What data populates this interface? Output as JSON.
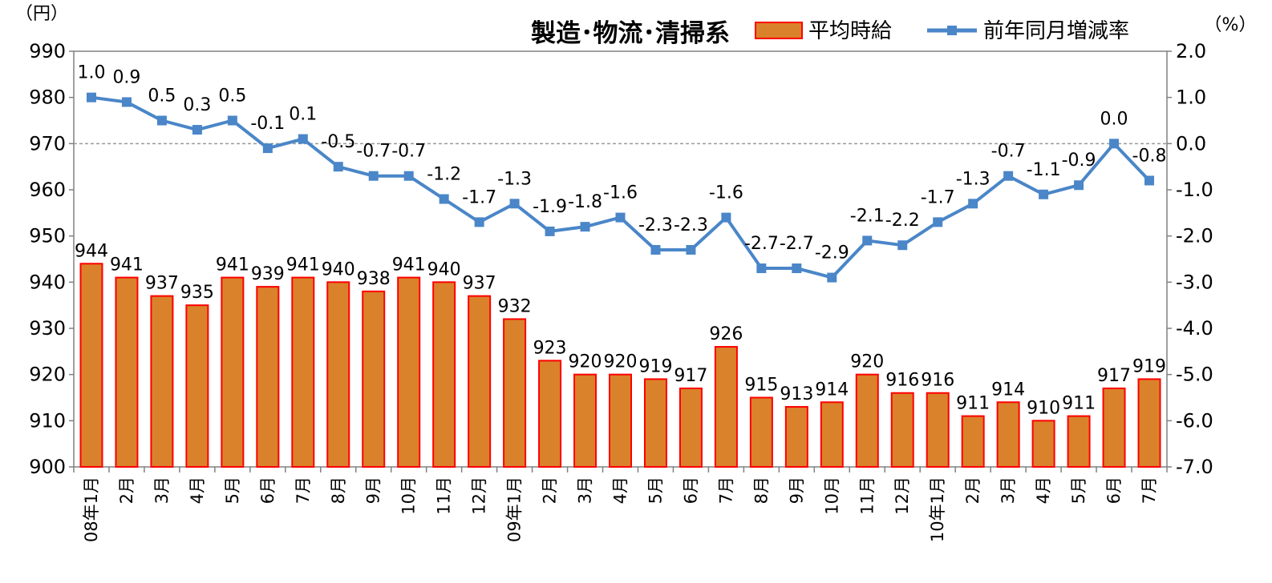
{
  "chart_data": {
    "type": "bar",
    "title": "製造･物流･清掃系",
    "left_unit": "（円）",
    "right_unit": "（%）",
    "categories": [
      "08年1月",
      "2月",
      "3月",
      "4月",
      "5月",
      "6月",
      "7月",
      "8月",
      "9月",
      "10月",
      "11月",
      "12月",
      "09年1月",
      "2月",
      "3月",
      "4月",
      "5月",
      "6月",
      "7月",
      "8月",
      "9月",
      "10月",
      "11月",
      "12月",
      "10年1月",
      "2月",
      "3月",
      "4月",
      "5月",
      "6月",
      "7月"
    ],
    "series": [
      {
        "name": "平均時給",
        "type": "bar",
        "axis": "left",
        "color": "#d9822b",
        "edge_color": "#ff0000",
        "values": [
          944,
          941,
          937,
          935,
          941,
          939,
          941,
          940,
          938,
          941,
          940,
          937,
          932,
          923,
          920,
          920,
          919,
          917,
          926,
          915,
          913,
          914,
          920,
          916,
          916,
          911,
          914,
          910,
          911,
          917,
          919
        ],
        "labels": [
          "944",
          "941",
          "937",
          "935",
          "941",
          "939",
          "941",
          "940",
          "938",
          "941",
          "940",
          "937",
          "932",
          "923",
          "920",
          "920",
          "919",
          "917",
          "926",
          "915",
          "913",
          "914",
          "920",
          "916",
          "916",
          "911",
          "914",
          "910",
          "911",
          "917",
          "919"
        ]
      },
      {
        "name": "前年同月増減率",
        "type": "line",
        "axis": "right",
        "color": "#4a86c8",
        "values": [
          1.0,
          0.9,
          0.5,
          0.3,
          0.5,
          -0.1,
          0.1,
          -0.5,
          -0.7,
          -0.7,
          -1.2,
          -1.7,
          -1.3,
          -1.9,
          -1.8,
          -1.6,
          -2.3,
          -2.3,
          -1.6,
          -2.7,
          -2.7,
          -2.9,
          -2.1,
          -2.2,
          -1.7,
          -1.3,
          -0.7,
          -1.1,
          -0.9,
          0.0,
          -0.8
        ],
        "labels": [
          "1.0",
          "0.9",
          "0.5",
          "0.3",
          "0.5",
          "-0.1",
          "0.1",
          "-0.5",
          "-0.7",
          "-0.7",
          "-1.2",
          "-1.7",
          "-1.3",
          "-1.9",
          "-1.8",
          "-1.6",
          "-2.3",
          "-2.3",
          "-1.6",
          "-2.7",
          "-2.7",
          "-2.9",
          "-2.1",
          "-2.2",
          "-1.7",
          "-1.3",
          "-0.7",
          "-1.1",
          "-0.9",
          "0.0",
          "-0.8"
        ]
      }
    ],
    "y_left": {
      "min": 900,
      "max": 990,
      "step": 10,
      "ticks": [
        "900",
        "910",
        "920",
        "930",
        "940",
        "950",
        "960",
        "970",
        "980",
        "990"
      ]
    },
    "y_right": {
      "min": -7.0,
      "max": 2.0,
      "step": 1.0,
      "ticks": [
        "-7.0",
        "-6.0",
        "-5.0",
        "-4.0",
        "-3.0",
        "-2.0",
        "-1.0",
        "0.0",
        "1.0",
        "2.0"
      ]
    },
    "zero_line": true,
    "grid": false,
    "legend_position": "top-right"
  }
}
